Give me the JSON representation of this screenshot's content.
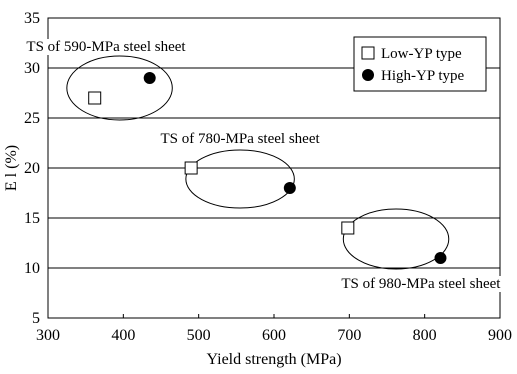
{
  "chart_data": {
    "type": "scatter",
    "xlabel": "Yield strength (MPa)",
    "ylabel": "E l (%)",
    "xlim": [
      300,
      900
    ],
    "ylim": [
      5,
      35
    ],
    "xticks": [
      "300",
      "400",
      "500",
      "600",
      "700",
      "800",
      "900"
    ],
    "yticks": [
      "5",
      "10",
      "15",
      "20",
      "25",
      "30",
      "35"
    ],
    "grid": "horizontal",
    "legend_position": "top-right",
    "series": [
      {
        "name": "Low-YP type",
        "marker": "open-square",
        "points": [
          {
            "x": 362,
            "y": 27
          },
          {
            "x": 490,
            "y": 20
          },
          {
            "x": 698,
            "y": 14
          }
        ]
      },
      {
        "name": "High-YP type",
        "marker": "filled-circle",
        "points": [
          {
            "x": 435,
            "y": 29
          },
          {
            "x": 621,
            "y": 18
          },
          {
            "x": 821,
            "y": 11
          }
        ]
      }
    ],
    "annotations": [
      {
        "text": "TS of 590-MPa steel sheet",
        "ellipse": {
          "cx": 395,
          "cy": 28,
          "rx": 70,
          "ry": 3.2
        }
      },
      {
        "text": "TS of 780-MPa steel sheet",
        "ellipse": {
          "cx": 555,
          "cy": 18.9,
          "rx": 72,
          "ry": 2.9
        }
      },
      {
        "text": "TS of 980-MPa steel sheet",
        "ellipse": {
          "cx": 762,
          "cy": 12.9,
          "rx": 70,
          "ry": 3.0
        }
      }
    ]
  }
}
